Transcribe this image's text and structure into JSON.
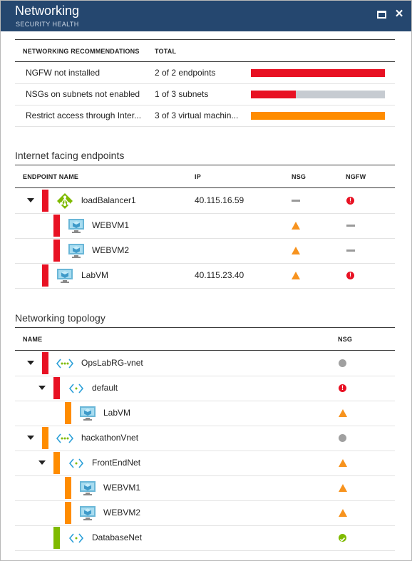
{
  "header": {
    "title": "Networking",
    "subtitle": "SECURITY HEALTH",
    "maximize_icon": "maximize-icon",
    "close_icon": "close-icon",
    "close_glyph": "×"
  },
  "colors": {
    "header_bg": "#25476f",
    "high": "#e81123",
    "medium": "#ff8c00",
    "low": "#7fba00",
    "bar_empty": "#c6cbd1"
  },
  "recommendations": {
    "headers": {
      "name": "NETWORKING RECOMMENDATIONS",
      "total": "TOTAL"
    },
    "rows": [
      {
        "name": "NGFW not installed",
        "total": "2 of 2 endpoints",
        "fraction": 1.0,
        "color": "#e81123"
      },
      {
        "name": "NSGs on subnets not enabled",
        "total": "1 of 3 subnets",
        "fraction": 0.333,
        "color": "#e81123"
      },
      {
        "name": "Restrict access through Inter...",
        "total": "3 of 3 virtual machin...",
        "fraction": 1.0,
        "color": "#ff8c00"
      }
    ]
  },
  "endpoints": {
    "title": "Internet facing endpoints",
    "headers": {
      "name": "ENDPOINT NAME",
      "ip": "IP",
      "nsg": "NSG",
      "ngfw": "NGFW"
    },
    "rows": [
      {
        "name": "loadBalancer1",
        "ip": "40.115.16.59",
        "nsg": "none",
        "ngfw": "high",
        "icon": "load-balancer-icon"
      },
      {
        "name": "WEBVM1",
        "ip": "",
        "nsg": "medium",
        "ngfw": "none",
        "icon": "vm-icon"
      },
      {
        "name": "WEBVM2",
        "ip": "",
        "nsg": "medium",
        "ngfw": "none",
        "icon": "vm-icon"
      },
      {
        "name": "LabVM",
        "ip": "40.115.23.40",
        "nsg": "medium",
        "ngfw": "high",
        "icon": "vm-icon"
      }
    ]
  },
  "topology": {
    "title": "Networking topology",
    "headers": {
      "name": "NAME",
      "nsg": "NSG"
    },
    "rows": [
      {
        "name": "OpsLabRG-vnet",
        "nsg": "unknown",
        "icon": "vnet-icon"
      },
      {
        "name": "default",
        "nsg": "high",
        "icon": "subnet-icon"
      },
      {
        "name": "LabVM",
        "nsg": "medium",
        "icon": "vm-icon"
      },
      {
        "name": "hackathonVnet",
        "nsg": "unknown",
        "icon": "vnet-icon"
      },
      {
        "name": "FrontEndNet",
        "nsg": "medium",
        "icon": "subnet-icon"
      },
      {
        "name": "WEBVM1",
        "nsg": "medium",
        "icon": "vm-icon"
      },
      {
        "name": "WEBVM2",
        "nsg": "medium",
        "icon": "vm-icon"
      },
      {
        "name": "DatabaseNet",
        "nsg": "healthy",
        "icon": "subnet-icon"
      }
    ]
  }
}
